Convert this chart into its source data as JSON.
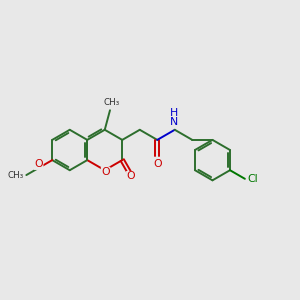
{
  "bg_color": "#e8e8e8",
  "bond_color": "#2d6e2d",
  "oxygen_color": "#cc0000",
  "nitrogen_color": "#0000cc",
  "chlorine_color": "#007700",
  "figsize": [
    3.0,
    3.0
  ],
  "dpi": 100,
  "lw": 1.4,
  "BL": 0.68,
  "xlim": [
    0,
    10
  ],
  "ylim": [
    0,
    10
  ]
}
